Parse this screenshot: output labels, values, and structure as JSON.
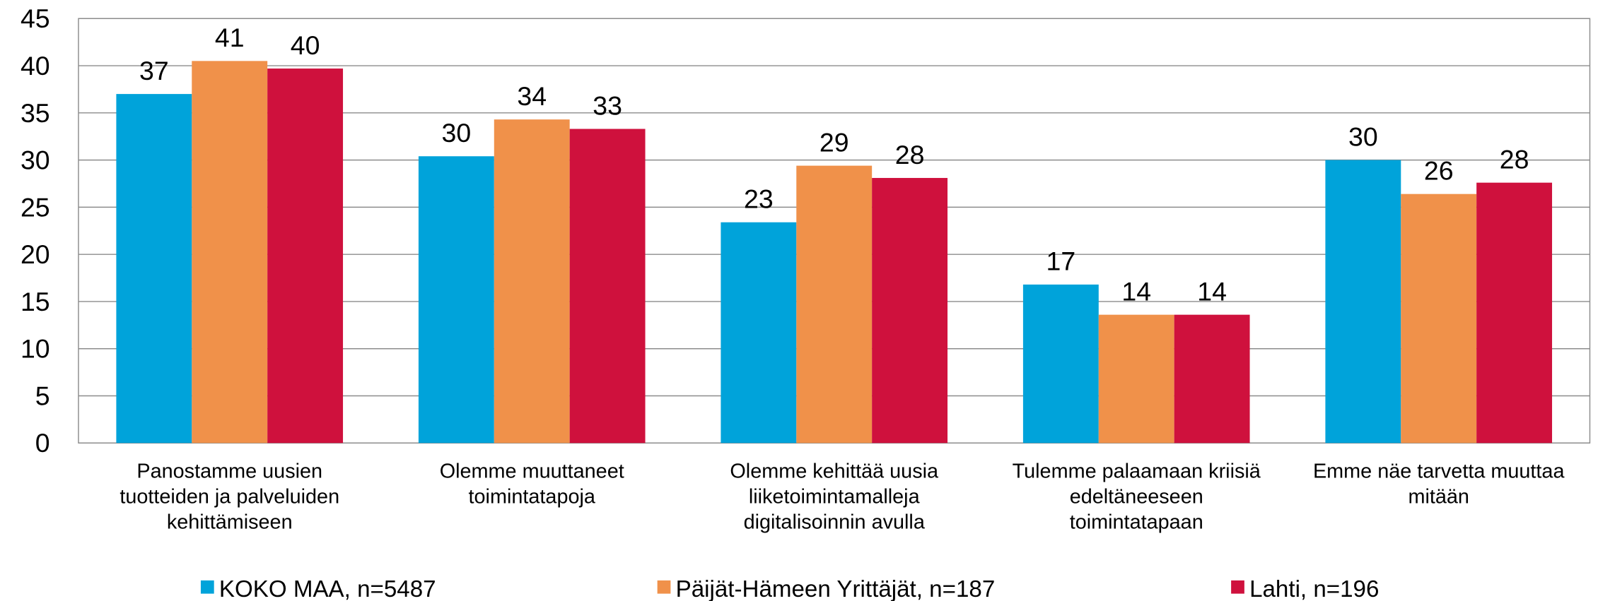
{
  "chart_data": {
    "type": "bar",
    "categories": [
      [
        "Panostamme uusien",
        "tuotteiden ja palveluiden",
        "kehittämiseen"
      ],
      [
        "Olemme muuttaneet",
        "toimintatapoja"
      ],
      [
        "Olemme kehittää uusia",
        "liiketoimintamalleja",
        "digitalisoinnin avulla"
      ],
      [
        "Tulemme palaamaan kriisiä",
        "edeltäneeseen",
        "toimintatapaan"
      ],
      [
        "Emme näe tarvetta muuttaa",
        "mitään"
      ]
    ],
    "series": [
      {
        "name": "KOKO MAA, n=5487",
        "color": "#00a3da",
        "values": [
          37.0,
          30.4,
          23.4,
          16.8,
          30.0
        ],
        "value_labels": [
          "37",
          "30",
          "23",
          "17",
          "30"
        ]
      },
      {
        "name": "Päijät-Hämeen Yrittäjät, n=187",
        "color": "#f0914a",
        "values": [
          40.5,
          34.3,
          29.4,
          13.6,
          26.4
        ],
        "value_labels": [
          "41",
          "34",
          "29",
          "14",
          "26"
        ]
      },
      {
        "name": "Lahti, n=196",
        "color": "#cf113d",
        "values": [
          39.7,
          33.3,
          28.1,
          13.6,
          27.6
        ],
        "value_labels": [
          "40",
          "33",
          "28",
          "14",
          "28"
        ]
      }
    ],
    "ylim": [
      0,
      45
    ],
    "yticks": [
      0,
      5,
      10,
      15,
      20,
      25,
      30,
      35,
      40,
      45
    ],
    "grid": true,
    "legend": "bottom"
  }
}
